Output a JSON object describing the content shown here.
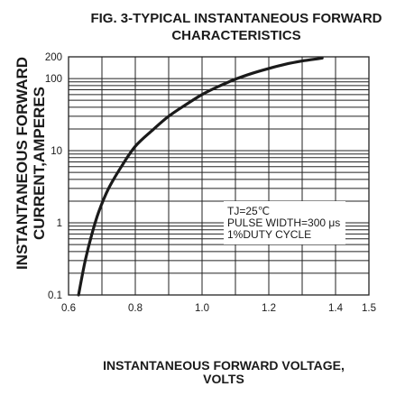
{
  "chart_data": {
    "type": "line",
    "title_line1": "FIG. 3-TYPICAL INSTANTANEOUS FORWARD",
    "title_line2": "CHARACTERISTICS",
    "xlabel_line1": "INSTANTANEOUS FORWARD VOLTAGE,",
    "xlabel_line2": "VOLTS",
    "ylabel_line1": "INSTANTANEOUS FORWARD",
    "ylabel_line2": "CURRENT,AMPERES",
    "xlim": [
      0.6,
      1.5
    ],
    "ylim": [
      0.1,
      200
    ],
    "yscale": "log",
    "grid": true,
    "x_ticks": [
      {
        "value": 0.6,
        "label": "0.6"
      },
      {
        "value": 0.8,
        "label": "0.8"
      },
      {
        "value": 1.0,
        "label": "1.0"
      },
      {
        "value": 1.2,
        "label": "1.2"
      },
      {
        "value": 1.4,
        "label": "1.4"
      },
      {
        "value": 1.5,
        "label": "1.5"
      }
    ],
    "y_ticks": [
      {
        "value": 0.1,
        "label": "0.1"
      },
      {
        "value": 1,
        "label": "1"
      },
      {
        "value": 10,
        "label": "10"
      },
      {
        "value": 100,
        "label": "100"
      },
      {
        "value": 200,
        "label": "200"
      }
    ],
    "annotation": {
      "line1": "TJ=25℃",
      "line2": "PULSE WIDTH=300 μs",
      "line3": "1%DUTY CYCLE"
    },
    "series": [
      {
        "x": [
          0.63,
          0.65,
          0.67,
          0.69,
          0.72,
          0.76,
          0.8,
          0.85,
          0.9,
          0.95,
          1.0,
          1.05,
          1.1,
          1.15,
          1.2,
          1.25,
          1.3,
          1.36
        ],
        "y": [
          0.1,
          0.3,
          0.7,
          1.4,
          3.0,
          6.2,
          11.5,
          19,
          30,
          43,
          60,
          78,
          98,
          118,
          138,
          158,
          175,
          192
        ]
      }
    ]
  }
}
